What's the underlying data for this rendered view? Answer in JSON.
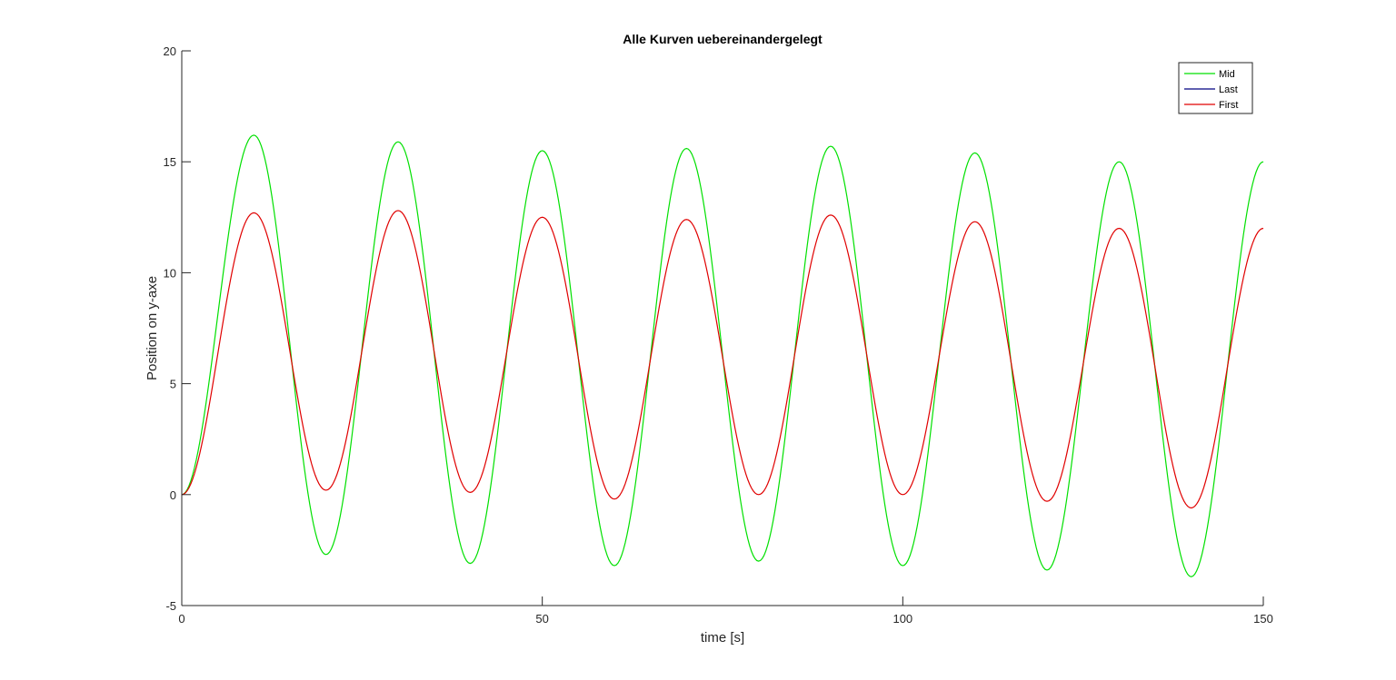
{
  "chart_data": {
    "type": "line",
    "title": "Alle Kurven uebereinandergelegt",
    "xlabel": "time [s]",
    "ylabel": "Position on y-axe",
    "xlim": [
      0,
      150
    ],
    "ylim": [
      -5,
      20
    ],
    "xticks": [
      0,
      50,
      100,
      150
    ],
    "yticks": [
      -5,
      0,
      5,
      10,
      15,
      20
    ],
    "xtick_labels": [
      "0",
      "50",
      "100",
      "150"
    ],
    "ytick_labels": [
      "-5",
      "0",
      "5",
      "10",
      "15",
      "20"
    ],
    "grid": false,
    "legend_position": "top-right",
    "legend": [
      "Mid",
      "Last",
      "First"
    ],
    "series": [
      {
        "name": "Mid",
        "color": "#00e000",
        "peaks": [
          [
            10,
            16.2
          ],
          [
            30,
            15.9
          ],
          [
            50,
            15.5
          ],
          [
            70,
            15.6
          ],
          [
            90,
            15.7
          ],
          [
            110,
            15.4
          ],
          [
            130,
            15.0
          ]
        ],
        "troughs": [
          [
            0,
            0.0
          ],
          [
            20,
            -2.7
          ],
          [
            40,
            -3.1
          ],
          [
            60,
            -3.2
          ],
          [
            80,
            -3.0
          ],
          [
            100,
            -3.2
          ],
          [
            120,
            -3.4
          ],
          [
            140,
            -3.7
          ]
        ],
        "end": [
          150,
          15.0
        ]
      },
      {
        "name": "Last",
        "color": "#000080",
        "peaks": [],
        "troughs": [],
        "end": null
      },
      {
        "name": "First",
        "color": "#e00000",
        "peaks": [
          [
            10,
            12.7
          ],
          [
            30,
            12.8
          ],
          [
            50,
            12.5
          ],
          [
            70,
            12.4
          ],
          [
            90,
            12.6
          ],
          [
            110,
            12.3
          ],
          [
            130,
            12.0
          ]
        ],
        "troughs": [
          [
            0,
            0.0
          ],
          [
            20,
            0.2
          ],
          [
            40,
            0.1
          ],
          [
            60,
            -0.2
          ],
          [
            80,
            0.0
          ],
          [
            100,
            0.0
          ],
          [
            120,
            -0.3
          ],
          [
            140,
            -0.6
          ]
        ],
        "end": [
          150,
          12.0
        ]
      }
    ]
  }
}
